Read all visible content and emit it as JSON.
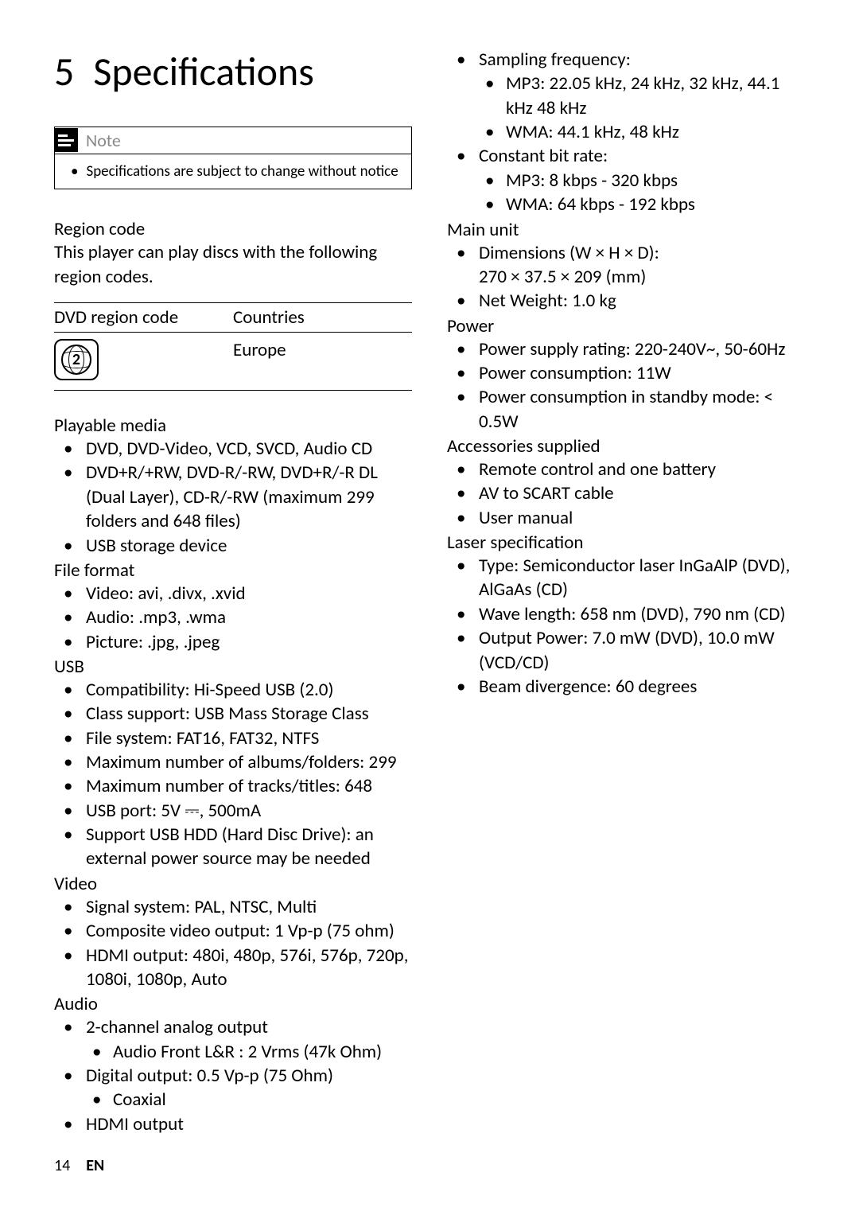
{
  "chapter": {
    "num": "5",
    "title": "Specifications"
  },
  "note": {
    "label": "Note",
    "text": "Specifications are subject to change without notice"
  },
  "region": {
    "heading": "Region code",
    "desc": "This player can play discs with the following region codes.",
    "col1": "DVD region code",
    "col2": "Countries",
    "code_num": "2",
    "country": "Europe"
  },
  "sections": {
    "playable": {
      "title": "Playable media",
      "items": [
        "DVD, DVD-Video, VCD, SVCD, Audio CD",
        "DVD+R/+RW, DVD-R/-RW, DVD+R/-R DL (Dual Layer), CD-R/-RW (maximum 299 folders and 648 files)",
        "USB storage device"
      ]
    },
    "format": {
      "title": "File format",
      "items": [
        "Video: avi, .divx, .xvid",
        "Audio: .mp3, .wma",
        "Picture: .jpg, .jpeg"
      ]
    },
    "usb": {
      "title": "USB",
      "items": [
        "Compatibility: Hi-Speed USB (2.0)",
        "Class support: USB Mass Storage Class",
        "File system: FAT16, FAT32, NTFS",
        "Maximum number of albums/folders: 299",
        "Maximum number of tracks/titles: 648",
        "USB port: 5V ⎓, 500mA",
        "Support USB HDD (Hard Disc Drive): an external power source may be needed"
      ]
    },
    "video": {
      "title": "Video",
      "items": [
        "Signal system: PAL, NTSC, Multi",
        "Composite video output: 1 Vp-p (75 ohm)",
        "HDMI output: 480i, 480p, 576i, 576p, 720p, 1080i, 1080p, Auto"
      ]
    },
    "audio": {
      "title": "Audio",
      "i0": "2-channel analog output",
      "i0a": "Audio Front L&R : 2 Vrms (47k Ohm)",
      "i1": "Digital output: 0.5 Vp-p (75 Ohm)",
      "i1a": "Coaxial",
      "i2": "HDMI output",
      "i3": "Sampling frequency:",
      "i3a": "MP3: 22.05 kHz, 24 kHz, 32 kHz, 44.1 kHz 48 kHz",
      "i3b": "WMA: 44.1 kHz, 48 kHz",
      "i4": "Constant bit rate:",
      "i4a": "MP3: 8 kbps - 320 kbps",
      "i4b": "WMA: 64 kbps - 192 kbps"
    },
    "main": {
      "title": "Main unit",
      "i0a": "Dimensions (W × H × D):",
      "i0b": "270 × 37.5 × 209 (mm)",
      "i1": "Net Weight: 1.0 kg"
    },
    "power": {
      "title": "Power",
      "items": [
        "Power supply rating: 220-240V~, 50-60Hz",
        "Power consumption: 11W",
        "Power consumption in standby mode: < 0.5W"
      ]
    },
    "acc": {
      "title": "Accessories supplied",
      "items": [
        "Remote control and one battery",
        "AV to SCART cable",
        "User manual"
      ]
    },
    "laser": {
      "title": "Laser specification",
      "items": [
        "Type: Semiconductor laser InGaAlP (DVD), AlGaAs (CD)",
        "Wave length: 658 nm (DVD), 790 nm (CD)",
        "Output Power: 7.0 mW (DVD), 10.0 mW (VCD/CD)",
        "Beam divergence: 60 degrees"
      ]
    }
  },
  "footer": {
    "page": "14",
    "lang": "EN"
  }
}
